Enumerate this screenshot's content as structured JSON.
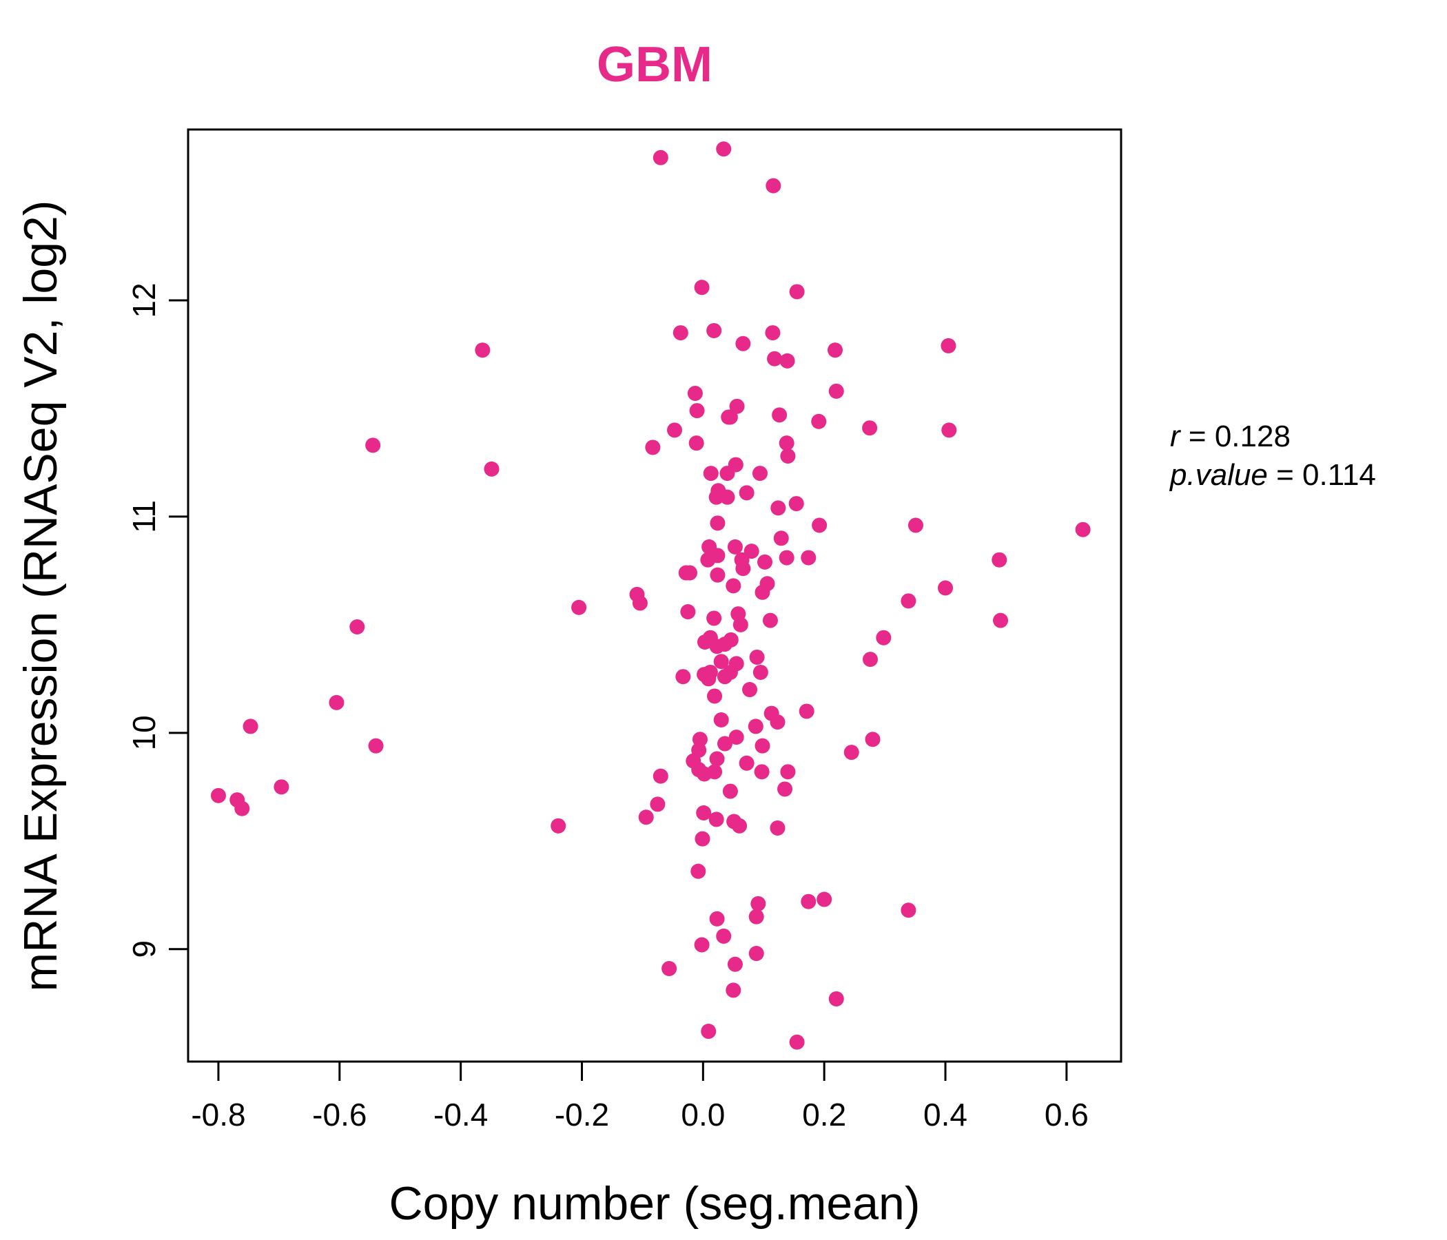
{
  "chart_data": {
    "type": "scatter",
    "title": "GBM",
    "title_color": "#E7298A",
    "point_color": "#E7298A",
    "xlabel": "Copy number (seg.mean)",
    "ylabel": "mRNA Expression (RNASeq V2, log2)",
    "xlim": [
      -0.85,
      0.69
    ],
    "ylim": [
      8.48,
      12.79
    ],
    "x_ticks": [
      -0.8,
      -0.6,
      -0.4,
      -0.2,
      0.0,
      0.2,
      0.4,
      0.6
    ],
    "x_tick_labels": [
      "-0.8",
      "-0.6",
      "-0.4",
      "-0.2",
      "0.0",
      "0.2",
      "0.4",
      "0.6"
    ],
    "y_ticks": [
      9,
      10,
      11,
      12
    ],
    "y_tick_labels": [
      "9",
      "10",
      "11",
      "12"
    ],
    "grid": false,
    "legend": "none",
    "stats": {
      "r_label": "r",
      "r_value": "0.128",
      "p_label": "p.value",
      "p_value": "0.114"
    },
    "points": [
      [
        -0.07,
        12.66
      ],
      [
        0.034,
        12.7
      ],
      [
        0.116,
        12.53
      ],
      [
        -0.002,
        12.06
      ],
      [
        0.155,
        12.04
      ],
      [
        -0.037,
        11.85
      ],
      [
        0.018,
        11.86
      ],
      [
        0.115,
        11.85
      ],
      [
        0.066,
        11.8
      ],
      [
        0.405,
        11.79
      ],
      [
        -0.364,
        11.77
      ],
      [
        0.218,
        11.77
      ],
      [
        0.118,
        11.73
      ],
      [
        0.139,
        11.72
      ],
      [
        0.22,
        11.58
      ],
      [
        -0.013,
        11.57
      ],
      [
        0.056,
        11.51
      ],
      [
        -0.01,
        11.49
      ],
      [
        0.126,
        11.47
      ],
      [
        0.042,
        11.46
      ],
      [
        0.045,
        11.46
      ],
      [
        0.191,
        11.44
      ],
      [
        -0.047,
        11.4
      ],
      [
        0.275,
        11.41
      ],
      [
        0.406,
        11.4
      ],
      [
        -0.545,
        11.33
      ],
      [
        -0.083,
        11.32
      ],
      [
        -0.011,
        11.34
      ],
      [
        0.138,
        11.34
      ],
      [
        0.14,
        11.28
      ],
      [
        -0.349,
        11.22
      ],
      [
        0.054,
        11.24
      ],
      [
        0.013,
        11.2
      ],
      [
        0.04,
        11.2
      ],
      [
        0.094,
        11.2
      ],
      [
        0.025,
        11.12
      ],
      [
        0.072,
        11.11
      ],
      [
        0.022,
        11.09
      ],
      [
        0.04,
        11.09
      ],
      [
        0.154,
        11.06
      ],
      [
        0.124,
        11.04
      ],
      [
        0.627,
        10.94
      ],
      [
        0.351,
        10.96
      ],
      [
        0.024,
        10.97
      ],
      [
        0.192,
        10.96
      ],
      [
        0.129,
        10.9
      ],
      [
        0.01,
        10.86
      ],
      [
        0.053,
        10.86
      ],
      [
        0.08,
        10.84
      ],
      [
        0.024,
        10.82
      ],
      [
        0.008,
        10.8
      ],
      [
        0.064,
        10.8
      ],
      [
        0.102,
        10.79
      ],
      [
        0.138,
        10.81
      ],
      [
        0.174,
        10.81
      ],
      [
        0.489,
        10.8
      ],
      [
        -0.028,
        10.74
      ],
      [
        -0.022,
        10.74
      ],
      [
        0.024,
        10.73
      ],
      [
        0.066,
        10.76
      ],
      [
        0.106,
        10.69
      ],
      [
        0.05,
        10.68
      ],
      [
        0.098,
        10.65
      ],
      [
        -0.109,
        10.64
      ],
      [
        -0.104,
        10.6
      ],
      [
        0.4,
        10.67
      ],
      [
        0.339,
        10.61
      ],
      [
        -0.205,
        10.58
      ],
      [
        -0.025,
        10.56
      ],
      [
        0.058,
        10.55
      ],
      [
        0.018,
        10.53
      ],
      [
        0.062,
        10.5
      ],
      [
        0.111,
        10.52
      ],
      [
        0.491,
        10.52
      ],
      [
        -0.571,
        10.49
      ],
      [
        0.298,
        10.44
      ],
      [
        0.003,
        10.42
      ],
      [
        0.012,
        10.44
      ],
      [
        0.046,
        10.43
      ],
      [
        0.023,
        10.4
      ],
      [
        0.036,
        10.41
      ],
      [
        0.276,
        10.34
      ],
      [
        0.089,
        10.35
      ],
      [
        0.03,
        10.33
      ],
      [
        0.055,
        10.32
      ],
      [
        0.095,
        10.28
      ],
      [
        0.002,
        10.27
      ],
      [
        -0.033,
        10.26
      ],
      [
        0.012,
        10.28
      ],
      [
        0.045,
        10.28
      ],
      [
        0.009,
        10.25
      ],
      [
        0.036,
        10.26
      ],
      [
        0.077,
        10.2
      ],
      [
        0.019,
        10.17
      ],
      [
        -0.605,
        10.14
      ],
      [
        0.171,
        10.1
      ],
      [
        0.113,
        10.09
      ],
      [
        -0.747,
        10.03
      ],
      [
        0.03,
        10.06
      ],
      [
        0.123,
        10.05
      ],
      [
        0.087,
        10.03
      ],
      [
        0.055,
        9.98
      ],
      [
        -0.005,
        9.97
      ],
      [
        0.28,
        9.97
      ],
      [
        -0.54,
        9.94
      ],
      [
        0.036,
        9.95
      ],
      [
        0.098,
        9.94
      ],
      [
        0.245,
        9.91
      ],
      [
        -0.007,
        9.92
      ],
      [
        -0.016,
        9.87
      ],
      [
        0.023,
        9.88
      ],
      [
        0.072,
        9.86
      ],
      [
        -0.007,
        9.83
      ],
      [
        0.002,
        9.81
      ],
      [
        0.019,
        9.82
      ],
      [
        0.14,
        9.82
      ],
      [
        0.097,
        9.82
      ],
      [
        -0.07,
        9.8
      ],
      [
        -0.696,
        9.75
      ],
      [
        0.135,
        9.74
      ],
      [
        0.045,
        9.73
      ],
      [
        -0.8,
        9.71
      ],
      [
        -0.769,
        9.69
      ],
      [
        -0.075,
        9.67
      ],
      [
        -0.761,
        9.65
      ],
      [
        0.001,
        9.63
      ],
      [
        -0.094,
        9.61
      ],
      [
        0.022,
        9.6
      ],
      [
        0.051,
        9.59
      ],
      [
        0.06,
        9.57
      ],
      [
        -0.239,
        9.57
      ],
      [
        0.123,
        9.56
      ],
      [
        -0.001,
        9.51
      ],
      [
        -0.008,
        9.36
      ],
      [
        0.2,
        9.23
      ],
      [
        0.174,
        9.22
      ],
      [
        0.091,
        9.21
      ],
      [
        0.339,
        9.18
      ],
      [
        0.023,
        9.14
      ],
      [
        0.088,
        9.15
      ],
      [
        0.034,
        9.06
      ],
      [
        -0.002,
        9.02
      ],
      [
        0.088,
        8.98
      ],
      [
        0.053,
        8.93
      ],
      [
        -0.056,
        8.91
      ],
      [
        0.05,
        8.81
      ],
      [
        0.22,
        8.77
      ],
      [
        0.009,
        8.62
      ],
      [
        0.155,
        8.57
      ]
    ]
  }
}
